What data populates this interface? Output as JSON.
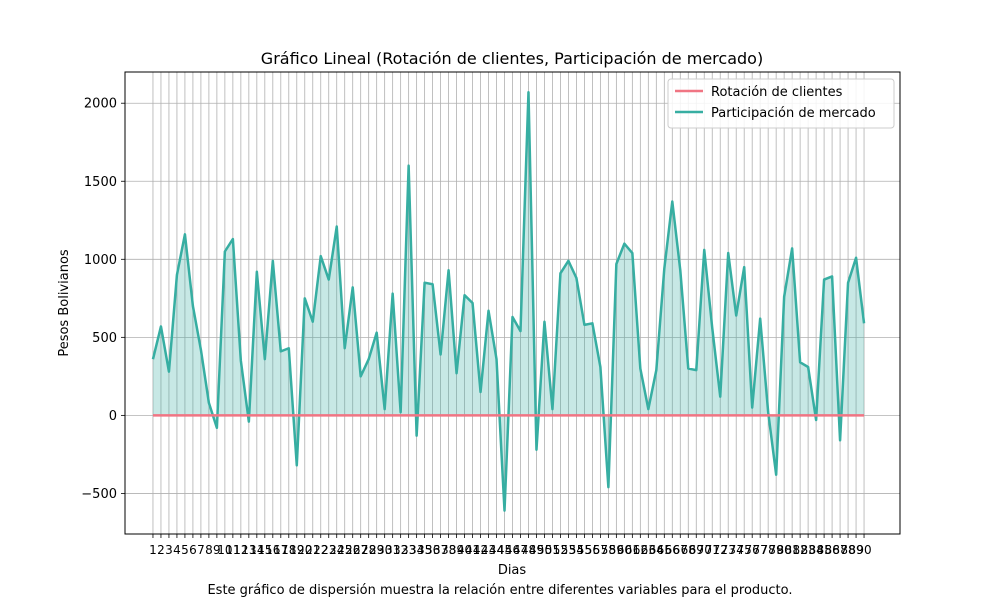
{
  "chart_data": {
    "type": "line",
    "title": "Gráfico Lineal (Rotación de clientes, Participación de mercado)",
    "xlabel": "Dias",
    "ylabel": "Pesos Bolivianos",
    "x": [
      1,
      2,
      3,
      4,
      5,
      6,
      7,
      8,
      9,
      10,
      11,
      12,
      13,
      14,
      15,
      16,
      17,
      18,
      19,
      20,
      21,
      22,
      23,
      24,
      25,
      26,
      27,
      28,
      29,
      30,
      31,
      32,
      33,
      34,
      35,
      36,
      37,
      38,
      39,
      40,
      41,
      42,
      43,
      44,
      45,
      46,
      47,
      48,
      49,
      50,
      51,
      52,
      53,
      54,
      55,
      56,
      57,
      58,
      59,
      60,
      61,
      62,
      63,
      64,
      65,
      66,
      67,
      68,
      69,
      70,
      71,
      72,
      73,
      74,
      75,
      76,
      77,
      78,
      79,
      80,
      81,
      82,
      83,
      84,
      85,
      86,
      87,
      88,
      89,
      90
    ],
    "xtick_labels": [
      "1",
      "2",
      "3",
      "4",
      "5",
      "6",
      "7",
      "8",
      "9",
      "10",
      "11",
      "12",
      "13",
      "14",
      "15",
      "16",
      "17",
      "18",
      "19",
      "20",
      "21",
      "22",
      "23",
      "24",
      "25",
      "26",
      "27",
      "28",
      "29",
      "30",
      "31",
      "32",
      "33",
      "34",
      "35",
      "36",
      "37",
      "38",
      "39",
      "40",
      "41",
      "42",
      "43",
      "44",
      "45",
      "46",
      "47",
      "48",
      "49",
      "50",
      "51",
      "52",
      "53",
      "54",
      "55",
      "56",
      "57",
      "58",
      "59",
      "60",
      "61",
      "62",
      "63",
      "64",
      "65",
      "66",
      "67",
      "68",
      "69",
      "70",
      "71",
      "72",
      "73",
      "74",
      "75",
      "76",
      "77",
      "78",
      "79",
      "80",
      "81",
      "82",
      "83",
      "84",
      "85",
      "86",
      "87",
      "88",
      "89",
      "90"
    ],
    "yticks": [
      "−500",
      "0",
      "500",
      "1000",
      "1500",
      "2000"
    ],
    "ytick_values": [
      -500,
      0,
      500,
      1000,
      1500,
      2000
    ],
    "ylim": [
      -760,
      2200
    ],
    "xlim": [
      -2.5,
      94.5
    ],
    "grid": true,
    "legend": "top-right",
    "series": [
      {
        "name": "Rotación de clientes",
        "color": "#f07583",
        "fill": false,
        "values": [
          0,
          0,
          0,
          0,
          0,
          0,
          0,
          0,
          0,
          0,
          0,
          0,
          0,
          0,
          0,
          0,
          0,
          0,
          0,
          0,
          0,
          0,
          0,
          0,
          0,
          0,
          0,
          0,
          0,
          0,
          0,
          0,
          0,
          0,
          0,
          0,
          0,
          0,
          0,
          0,
          0,
          0,
          0,
          0,
          0,
          0,
          0,
          0,
          0,
          0,
          0,
          0,
          0,
          0,
          0,
          0,
          0,
          0,
          0,
          0,
          0,
          0,
          0,
          0,
          0,
          0,
          0,
          0,
          0,
          0,
          0,
          0,
          0,
          0,
          0,
          0,
          0,
          0,
          0,
          0,
          0,
          0,
          0,
          0,
          0,
          0,
          0,
          0,
          0,
          0
        ]
      },
      {
        "name": "Participación de mercado",
        "color": "#37aea2",
        "fill": true,
        "values": [
          360,
          570,
          280,
          900,
          1160,
          700,
          420,
          80,
          -80,
          1050,
          1130,
          350,
          -40,
          920,
          360,
          990,
          410,
          430,
          -320,
          750,
          600,
          1020,
          870,
          1210,
          430,
          820,
          250,
          360,
          530,
          40,
          780,
          20,
          1600,
          -130,
          850,
          840,
          390,
          930,
          270,
          770,
          720,
          150,
          670,
          360,
          -610,
          630,
          540,
          2070,
          -220,
          600,
          40,
          910,
          990,
          880,
          580,
          590,
          310,
          -460,
          970,
          1100,
          1040,
          300,
          40,
          290,
          940,
          1370,
          930,
          300,
          290,
          1060,
          560,
          120,
          1040,
          640,
          950,
          50,
          620,
          20,
          -380,
          760,
          1070,
          340,
          310,
          -30,
          870,
          890,
          -160,
          850,
          1010,
          590
        ]
      }
    ]
  },
  "caption": "Este gráfico de dispersión muestra la relación entre diferentes variables para el producto."
}
